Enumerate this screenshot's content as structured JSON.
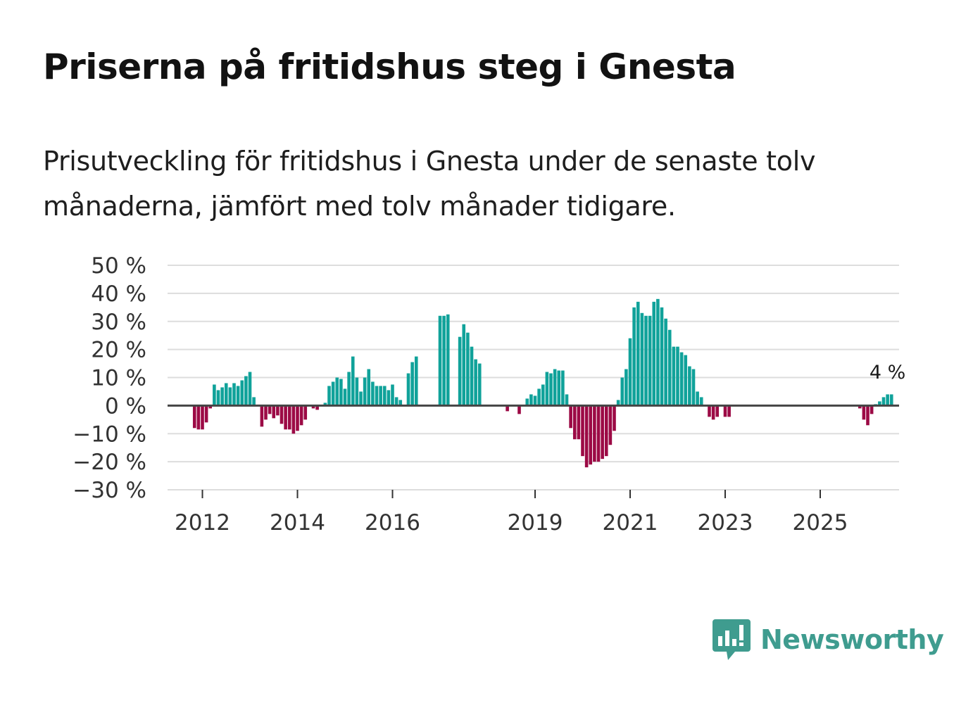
{
  "title": "Priserna på fritidshus steg i Gnesta",
  "subtitle": "Prisutveckling för fritidshus i Gnesta under de senaste tolv månaderna, jämfört med tolv månader tidigare.",
  "brand": {
    "name": "Newsworthy",
    "color": "#3f9c8f"
  },
  "colors": {
    "positive": "#10a29a",
    "negative": "#9c0a45",
    "zero_line": "#444444",
    "grid": "#dddddd"
  },
  "chart_data": {
    "type": "bar",
    "title": "Priserna på fritidshus steg i Gnesta",
    "xlabel": "",
    "ylabel": "",
    "ylim": [
      -30,
      50
    ],
    "y_ticks": [
      50,
      40,
      30,
      20,
      10,
      0,
      -10,
      -20,
      -30
    ],
    "y_tick_labels": [
      "50 %",
      "40 %",
      "30 %",
      "20 %",
      "10 %",
      "0 %",
      "−10 %",
      "−20 %",
      "−30 %"
    ],
    "x_ticks": [
      "2012",
      "2014",
      "2016",
      "2019",
      "2021",
      "2023",
      "2025"
    ],
    "start": "2011-11",
    "frequency": "monthly",
    "unit": "%",
    "annotation": {
      "label": "4 %",
      "month_index": 175
    },
    "values": [
      -8,
      -8.5,
      -8.5,
      -6,
      -1,
      7.5,
      5.5,
      6.5,
      8,
      6.5,
      8,
      7,
      9,
      10.5,
      12,
      3,
      null,
      -7.5,
      -5,
      -3,
      -4.5,
      -3.5,
      -6.5,
      -8.5,
      -8.5,
      -10,
      -9,
      -7,
      -5,
      null,
      -1,
      -1.5,
      null,
      1,
      7,
      8.5,
      10,
      9.5,
      6,
      12,
      17.5,
      10,
      5,
      10,
      13,
      8.5,
      7,
      7,
      7,
      5.5,
      7.5,
      3,
      2,
      null,
      11.5,
      15.5,
      17.5,
      null,
      null,
      null,
      null,
      null,
      32,
      32,
      32.5,
      null,
      null,
      24.5,
      29,
      26,
      21,
      16.5,
      15,
      null,
      null,
      null,
      null,
      null,
      null,
      -2,
      null,
      null,
      -3,
      null,
      2.5,
      4,
      3.5,
      6,
      7.5,
      12,
      11.5,
      13,
      12.5,
      12.5,
      4,
      -8,
      -12,
      -12,
      -18,
      -22,
      -21,
      -20,
      -20,
      -19,
      -18,
      -14,
      -9,
      2,
      10,
      13,
      24,
      35,
      37,
      33,
      32,
      32,
      37,
      38,
      35,
      31,
      27,
      21,
      21,
      19,
      18,
      14,
      13,
      5,
      3,
      null,
      -4,
      -5,
      -4,
      null,
      -4,
      -4,
      null,
      null,
      null,
      null,
      null,
      null,
      null,
      null,
      null,
      null,
      null,
      null,
      null,
      null,
      null,
      null,
      null,
      null,
      null,
      null,
      null,
      null,
      null,
      null,
      null,
      null,
      null,
      null,
      null,
      null,
      null,
      null,
      -1,
      -5,
      -7,
      -3,
      0.5,
      1.5,
      3,
      4,
      4
    ]
  }
}
